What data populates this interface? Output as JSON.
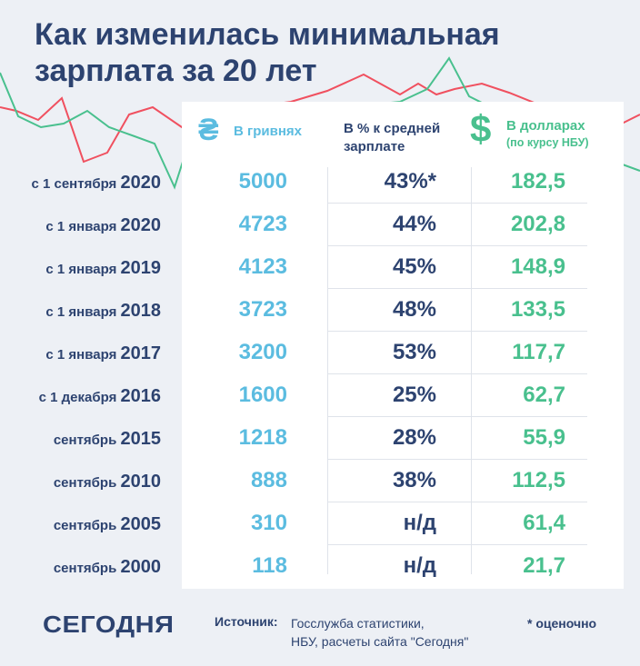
{
  "title_line1": "Как изменилась минимальная",
  "title_line2": "зарплата за 20 лет",
  "headers": {
    "uah_icon": "₴",
    "uah": "В гривнях",
    "pct": "В % к средней зарплате",
    "usd_icon": "$",
    "usd": "В долларах",
    "usd_sub": "(по курсу НБУ)"
  },
  "chart_data": {
    "type": "table",
    "title": "Как изменилась минимальная зарплата за 20 лет",
    "columns": [
      "В гривнях",
      "В % к средней зарплате",
      "В долларах (по курсу НБУ)"
    ],
    "rows": [
      {
        "label_prefix": "с 1 сентября",
        "year": "2020",
        "uah": "5000",
        "pct": "43%*",
        "usd": "182,5"
      },
      {
        "label_prefix": "с 1 января",
        "year": "2020",
        "uah": "4723",
        "pct": "44%",
        "usd": "202,8"
      },
      {
        "label_prefix": "с 1 января",
        "year": "2019",
        "uah": "4123",
        "pct": "45%",
        "usd": "148,9"
      },
      {
        "label_prefix": "с 1 января",
        "year": "2018",
        "uah": "3723",
        "pct": "48%",
        "usd": "133,5"
      },
      {
        "label_prefix": "с 1 января",
        "year": "2017",
        "uah": "3200",
        "pct": "53%",
        "usd": "117,7"
      },
      {
        "label_prefix": "с 1 декабря",
        "year": "2016",
        "uah": "1600",
        "pct": "25%",
        "usd": "62,7"
      },
      {
        "label_prefix": "сентябрь",
        "year": "2015",
        "uah": "1218",
        "pct": "28%",
        "usd": "55,9"
      },
      {
        "label_prefix": "сентябрь",
        "year": "2010",
        "uah": "888",
        "pct": "38%",
        "usd": "112,5"
      },
      {
        "label_prefix": "сентябрь",
        "year": "2005",
        "uah": "310",
        "pct": "н/д",
        "usd": "61,4"
      },
      {
        "label_prefix": "сентябрь",
        "year": "2000",
        "uah": "118",
        "pct": "н/д",
        "usd": "21,7"
      }
    ]
  },
  "colors": {
    "title": "#2d4370",
    "uah": "#5bbce0",
    "usd": "#49c08e",
    "line_red": "#f0505f",
    "line_green": "#49c08e"
  },
  "footer": {
    "logo": "СЕГОДНЯ",
    "source_label": "Источник:",
    "source_line1": "Госслужба статистики,",
    "source_line2": "НБУ, расчеты сайта \"Сегодня\"",
    "note": "* оценочно"
  }
}
